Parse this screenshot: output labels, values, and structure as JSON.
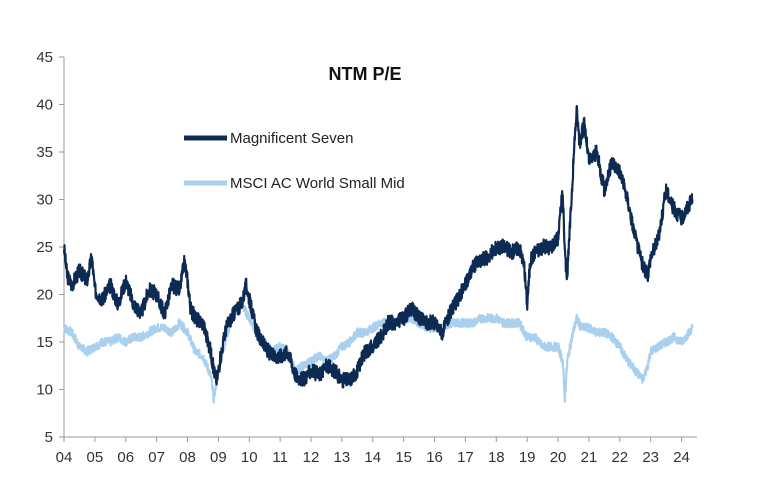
{
  "chart_data": {
    "type": "line",
    "title": "NTM P/E",
    "xlabel": "",
    "ylabel": "",
    "xlim": [
      2004,
      2024.5
    ],
    "ylim": [
      5,
      45
    ],
    "yticks": [
      5,
      10,
      15,
      20,
      25,
      30,
      35,
      40,
      45
    ],
    "xtick_labels": [
      "04",
      "05",
      "06",
      "07",
      "08",
      "09",
      "10",
      "11",
      "12",
      "13",
      "14",
      "15",
      "16",
      "17",
      "18",
      "19",
      "20",
      "21",
      "22",
      "23",
      "24"
    ],
    "grid": false,
    "legend_position": "upper-left",
    "colors": {
      "magnificent_seven": "#0d2b52",
      "msci": "#a9d0ee",
      "axis": "#999999"
    },
    "series": [
      {
        "name": "Magnificent Seven",
        "x": [
          2004.0,
          2004.1,
          2004.25,
          2004.5,
          2004.75,
          2004.9,
          2005.0,
          2005.1,
          2005.25,
          2005.5,
          2005.75,
          2006.0,
          2006.25,
          2006.5,
          2006.75,
          2007.0,
          2007.25,
          2007.5,
          2007.75,
          2007.9,
          2008.0,
          2008.1,
          2008.25,
          2008.5,
          2008.75,
          2008.85,
          2008.95,
          2009.1,
          2009.25,
          2009.5,
          2009.75,
          2009.9,
          2010.0,
          2010.25,
          2010.5,
          2010.75,
          2011.0,
          2011.25,
          2011.5,
          2011.75,
          2012.0,
          2012.25,
          2012.5,
          2012.75,
          2013.0,
          2013.25,
          2013.5,
          2013.75,
          2014.0,
          2014.25,
          2014.5,
          2014.75,
          2015.0,
          2015.25,
          2015.5,
          2015.75,
          2016.0,
          2016.25,
          2016.5,
          2016.75,
          2017.0,
          2017.25,
          2017.5,
          2017.75,
          2018.0,
          2018.25,
          2018.5,
          2018.75,
          2018.9,
          2019.0,
          2019.1,
          2019.25,
          2019.5,
          2019.75,
          2020.0,
          2020.15,
          2020.22,
          2020.3,
          2020.5,
          2020.6,
          2020.7,
          2020.85,
          2021.0,
          2021.25,
          2021.5,
          2021.75,
          2022.0,
          2022.25,
          2022.5,
          2022.75,
          2022.9,
          2023.0,
          2023.25,
          2023.5,
          2023.75,
          2024.0,
          2024.25,
          2024.35
        ],
        "values": [
          25.0,
          22.0,
          21.0,
          22.5,
          21.5,
          24.0,
          20.5,
          20.0,
          19.5,
          21.0,
          19.0,
          21.5,
          19.0,
          18.0,
          20.5,
          20.0,
          18.0,
          21.0,
          20.5,
          23.5,
          21.5,
          18.5,
          17.5,
          17.0,
          14.0,
          12.0,
          11.0,
          14.0,
          16.5,
          18.0,
          19.0,
          21.0,
          19.5,
          16.0,
          14.5,
          13.5,
          13.5,
          14.0,
          11.5,
          11.0,
          12.0,
          11.5,
          12.5,
          12.0,
          11.0,
          11.0,
          12.0,
          14.0,
          14.5,
          15.5,
          17.0,
          17.0,
          17.5,
          18.5,
          17.5,
          17.0,
          17.0,
          16.0,
          18.0,
          19.5,
          21.0,
          23.0,
          23.5,
          24.0,
          25.0,
          25.0,
          24.5,
          25.0,
          23.0,
          19.0,
          23.5,
          24.5,
          25.0,
          25.0,
          26.0,
          31.0,
          24.0,
          22.0,
          34.0,
          39.5,
          36.0,
          38.0,
          34.0,
          35.0,
          31.0,
          34.0,
          33.0,
          30.0,
          26.0,
          23.0,
          22.0,
          24.0,
          26.0,
          31.0,
          29.0,
          28.0,
          29.5,
          30.0
        ]
      },
      {
        "name": "MSCI AC World Small Mid",
        "x": [
          2004.0,
          2004.25,
          2004.5,
          2004.75,
          2005.0,
          2005.25,
          2005.5,
          2005.75,
          2006.0,
          2006.25,
          2006.5,
          2006.75,
          2007.0,
          2007.25,
          2007.5,
          2007.75,
          2008.0,
          2008.25,
          2008.5,
          2008.75,
          2008.85,
          2009.0,
          2009.25,
          2009.5,
          2009.75,
          2010.0,
          2010.25,
          2010.5,
          2010.75,
          2011.0,
          2011.25,
          2011.5,
          2011.75,
          2012.0,
          2012.25,
          2012.5,
          2012.75,
          2013.0,
          2013.25,
          2013.5,
          2013.75,
          2014.0,
          2014.25,
          2014.5,
          2014.75,
          2015.0,
          2015.25,
          2015.5,
          2015.75,
          2016.0,
          2016.25,
          2016.5,
          2016.75,
          2017.0,
          2017.25,
          2017.5,
          2017.75,
          2018.0,
          2018.25,
          2018.5,
          2018.75,
          2019.0,
          2019.25,
          2019.5,
          2019.75,
          2020.0,
          2020.15,
          2020.22,
          2020.3,
          2020.45,
          2020.6,
          2020.75,
          2021.0,
          2021.25,
          2021.5,
          2021.75,
          2022.0,
          2022.25,
          2022.5,
          2022.75,
          2022.9,
          2023.0,
          2023.25,
          2023.5,
          2023.75,
          2024.0,
          2024.25,
          2024.35
        ],
        "values": [
          16.5,
          16.0,
          14.5,
          14.0,
          14.5,
          15.0,
          15.0,
          15.5,
          15.0,
          15.5,
          15.5,
          16.0,
          16.5,
          16.5,
          16.0,
          17.0,
          16.0,
          14.0,
          13.5,
          11.5,
          9.0,
          12.0,
          15.5,
          18.0,
          19.0,
          17.5,
          16.0,
          15.0,
          14.0,
          14.5,
          14.0,
          12.0,
          12.5,
          13.0,
          13.5,
          13.0,
          13.5,
          14.5,
          15.0,
          16.0,
          16.0,
          16.5,
          17.0,
          17.0,
          17.0,
          17.5,
          17.5,
          17.0,
          16.5,
          16.5,
          16.5,
          17.0,
          17.0,
          17.0,
          17.0,
          17.5,
          17.5,
          17.5,
          17.0,
          17.0,
          17.0,
          15.5,
          15.5,
          14.5,
          14.5,
          14.5,
          13.0,
          9.0,
          13.0,
          15.5,
          17.5,
          16.5,
          16.5,
          16.0,
          16.0,
          15.5,
          14.5,
          13.0,
          12.0,
          11.0,
          12.5,
          14.0,
          14.5,
          15.0,
          15.5,
          15.0,
          16.0,
          16.5
        ]
      }
    ]
  }
}
